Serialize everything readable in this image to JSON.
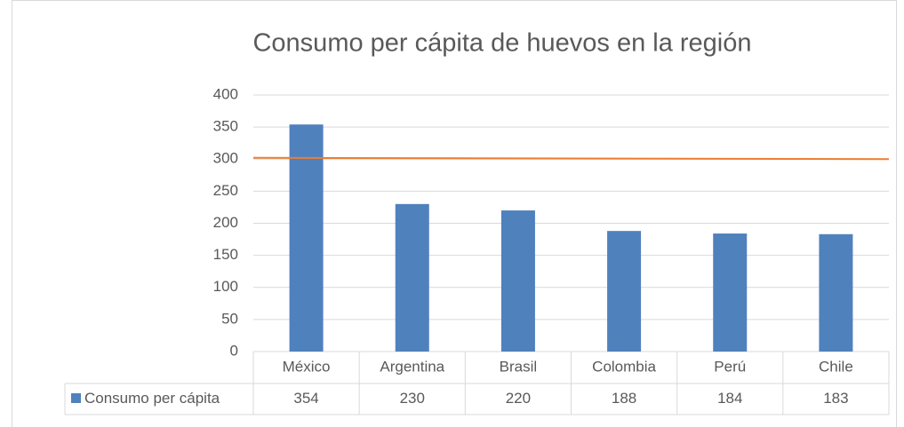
{
  "chart_data": {
    "type": "bar",
    "title": "Consumo per cápita de huevos en la región",
    "categories": [
      "México",
      "Argentina",
      "Brasil",
      "Colombia",
      "Perú",
      "Chile"
    ],
    "series": [
      {
        "name": "Consumo per cápita",
        "color": "#4f81bd",
        "values": [
          354,
          230,
          220,
          188,
          184,
          183
        ]
      }
    ],
    "line": {
      "color": "#ed7d31",
      "values": [
        302,
        300
      ]
    },
    "ylim": [
      0,
      400
    ],
    "yticks": [
      0,
      50,
      100,
      150,
      200,
      250,
      300,
      350,
      400
    ],
    "grid": true,
    "data_table": true
  }
}
